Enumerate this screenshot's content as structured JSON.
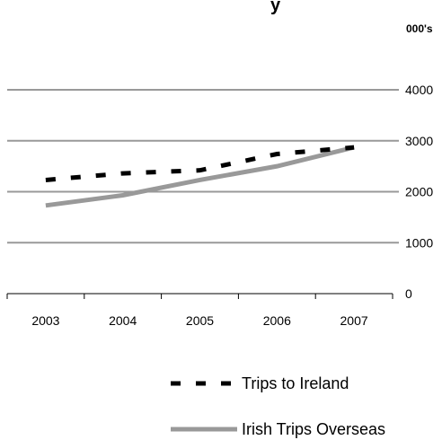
{
  "chart_data": {
    "type": "line",
    "title_fragment": "y",
    "unit_label": "000's",
    "x": [
      "2003",
      "2004",
      "2005",
      "2006",
      "2007"
    ],
    "ylim": [
      0,
      4000
    ],
    "yticks": [
      "0",
      "1000",
      "2000",
      "3000",
      "4000"
    ],
    "y_axis_side": "right",
    "grid": true,
    "legend_position": "bottom",
    "series": [
      {
        "name": "Trips to Ireland",
        "values": [
          2230,
          2360,
          2420,
          2740,
          2870
        ],
        "color": "#000000",
        "style": "dashed"
      },
      {
        "name": "Irish Trips Overseas",
        "values": [
          1730,
          1930,
          2230,
          2500,
          2870
        ],
        "color": "#999999",
        "style": "solid"
      }
    ]
  }
}
